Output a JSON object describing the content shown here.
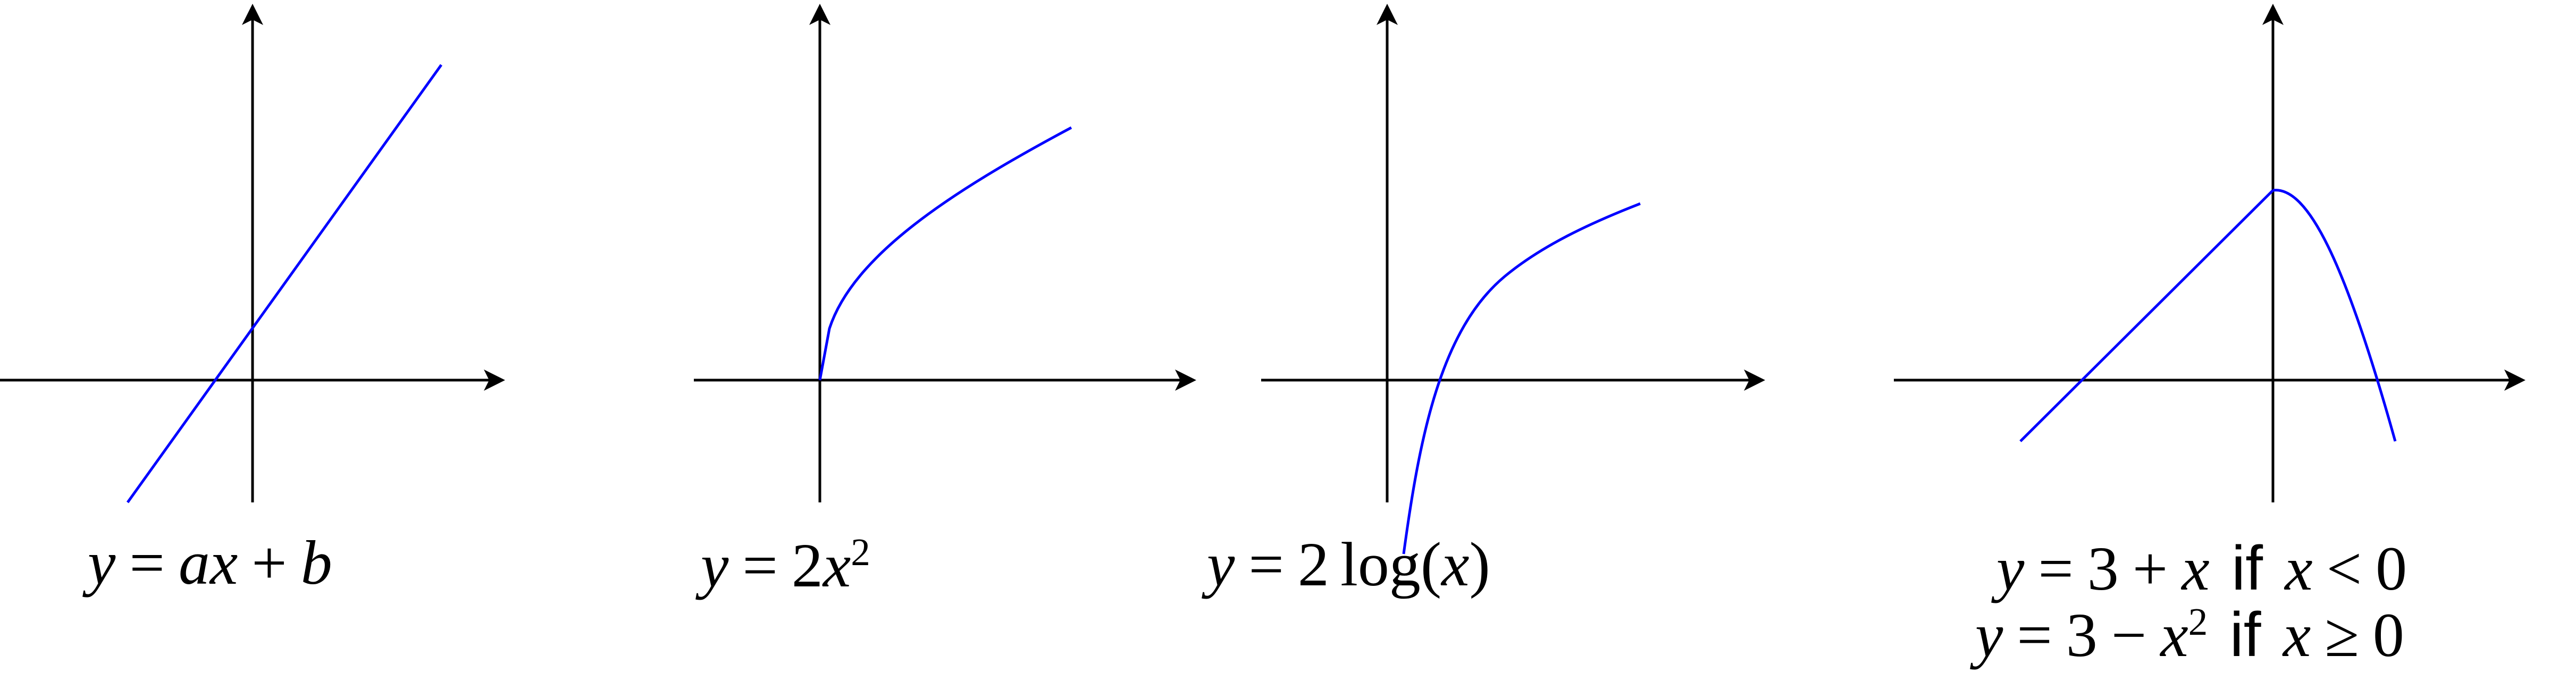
{
  "graphs": [
    {
      "id": "linear",
      "caption": {
        "y": "y",
        "eq": "=",
        "a": "a",
        "x": "x",
        "plus": "+",
        "b": "b"
      },
      "curve": {
        "type": "line",
        "slope": 1.33,
        "intercept": 0.4,
        "x_range": [
          -1.0,
          1.5
        ]
      }
    },
    {
      "id": "quadratic",
      "caption": {
        "y": "y",
        "eq": "=",
        "coef": "2",
        "x": "x",
        "exp": "2"
      },
      "curve": {
        "type": "sqrt-like",
        "x_range": [
          0,
          2.0
        ]
      }
    },
    {
      "id": "logarithm",
      "caption": {
        "y": "y",
        "eq": "=",
        "coef": "2",
        "fn": "log",
        "lp": "(",
        "x": "x",
        "rp": ")"
      },
      "curve": {
        "type": "log",
        "x_range": [
          0.1,
          2.0
        ]
      }
    },
    {
      "id": "piecewise",
      "caption_line1": {
        "y": "y",
        "eq": "=",
        "three": "3",
        "plus": "+",
        "x": "x",
        "if": "if",
        "x2": "x",
        "lt": "<",
        "zero": "0"
      },
      "caption_line2": {
        "y": "y",
        "eq": "=",
        "three": "3",
        "minus": "−",
        "x": "x",
        "exp": "2",
        "if": "if",
        "x2": "x",
        "ge": "≥",
        "zero": "0"
      },
      "curve": {
        "type": "piecewise",
        "pieces": [
          "3 + x for x < 0",
          "3 − x² for x ≥ 0"
        ]
      }
    }
  ],
  "colors": {
    "axis": "#000000",
    "curve": "#0000ff"
  }
}
